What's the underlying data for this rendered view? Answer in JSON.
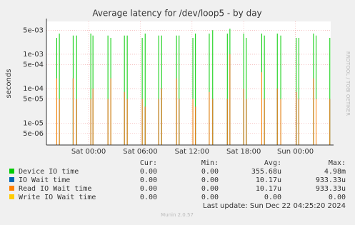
{
  "chart_data": {
    "type": "spike",
    "title": "Average latency for /dev/loop5 - by day",
    "y_label": "seconds",
    "side_text": "RRDTOOL / TOBI OETIKER",
    "log_y": true,
    "grid": true,
    "x": [
      -3.7,
      -3.4,
      -1.8,
      -1.4,
      0.25,
      0.5,
      2.24,
      2.57,
      4.15,
      4.48,
      6.22,
      6.56,
      8.13,
      8.47,
      10.2,
      10.5,
      12.1,
      12.4,
      14.0,
      14.4,
      16.1,
      16.4,
      18.0,
      18.3,
      20.1,
      20.4,
      21.9,
      22.3,
      24.1,
      24.4,
      26.1,
      26.4,
      28.0
    ],
    "xlim": [
      -4.9,
      28.1
    ],
    "xticks": [
      {
        "value": 0,
        "label": "Sat 00:00"
      },
      {
        "value": 6,
        "label": "Sat 06:00"
      },
      {
        "value": 12,
        "label": "Sat 12:00"
      },
      {
        "value": 18,
        "label": "Sat 18:00"
      },
      {
        "value": 24,
        "label": "Sun 00:00"
      }
    ],
    "ylim": [
      2.3e-06,
      0.009
    ],
    "yticks": [
      {
        "value": 5e-06,
        "label": "5e-06"
      },
      {
        "value": 1e-05,
        "label": "1e-05"
      },
      {
        "value": 5e-05,
        "label": "5e-05"
      },
      {
        "value": 0.0001,
        "label": "1e-04"
      },
      {
        "value": 0.0005,
        "label": "5e-04"
      },
      {
        "value": 0.001,
        "label": "1e-03"
      },
      {
        "value": 0.005,
        "label": "5e-03"
      }
    ],
    "legend_header": [
      "Cur:",
      "Min:",
      "Avg:",
      "Max:"
    ],
    "series": [
      {
        "name": "Device IO time",
        "color": "#00cc00",
        "stats": [
          "0.00",
          "0.00",
          "355.68u",
          "4.98m"
        ],
        "values": [
          0.003,
          0.004,
          0.0035,
          0.0035,
          0.004,
          0.0035,
          0.0035,
          0.003,
          0.0035,
          0.0035,
          0.003,
          0.004,
          0.0035,
          0.0035,
          0.0035,
          0.0035,
          0.003,
          0.004,
          0.004,
          0.005,
          0.004,
          0.0055,
          0.004,
          0.003,
          0.004,
          0.0035,
          0.004,
          0.0035,
          0.003,
          0.003,
          0.004,
          0.0035,
          0.003
        ]
      },
      {
        "name": "IO Wait time",
        "color": "#0066b3",
        "stats": [
          "0.00",
          "0.00",
          "10.17u",
          "933.33u"
        ],
        "values": [
          0.0002,
          5e-05,
          0.0002,
          5e-05,
          5e-05,
          0.0001,
          5e-05,
          0.0002,
          8e-05,
          5e-05,
          5e-05,
          3e-05,
          5e-05,
          0.0001,
          0.0002,
          5e-05,
          5e-05,
          3e-05,
          8e-05,
          5e-05,
          5e-05,
          0.001,
          0.0001,
          5e-05,
          0.0003,
          5e-05,
          0.0001,
          5e-05,
          8e-05,
          5e-05,
          0.0002,
          5e-05,
          5e-05
        ]
      },
      {
        "name": "Read IO Wait time",
        "color": "#ff8000",
        "stats": [
          "0.00",
          "0.00",
          "10.17u",
          "933.33u"
        ],
        "values": [
          0.0002,
          5e-05,
          0.0002,
          5e-05,
          5e-05,
          0.0001,
          5e-05,
          0.0002,
          8e-05,
          5e-05,
          5e-05,
          3e-05,
          5e-05,
          0.0001,
          0.0002,
          5e-05,
          5e-05,
          3e-05,
          8e-05,
          5e-05,
          5e-05,
          0.001,
          0.0001,
          5e-05,
          0.0003,
          5e-05,
          0.0001,
          5e-05,
          8e-05,
          5e-05,
          0.0002,
          5e-05,
          5e-05
        ]
      },
      {
        "name": "Write IO Wait time",
        "color": "#ffcc00",
        "stats": [
          "0.00",
          "0.00",
          "0.00",
          "0.00"
        ],
        "values": [
          null,
          null,
          null,
          null,
          null,
          null,
          null,
          null,
          null,
          null,
          null,
          null,
          null,
          null,
          null,
          null,
          null,
          null,
          null,
          null,
          null,
          null,
          null,
          null,
          null,
          null,
          null,
          null,
          null,
          null,
          null,
          null,
          null
        ]
      }
    ],
    "last_update": "Last update: Sun Dec 22 04:25:20 2024",
    "footer": "Munin 2.0.57"
  }
}
